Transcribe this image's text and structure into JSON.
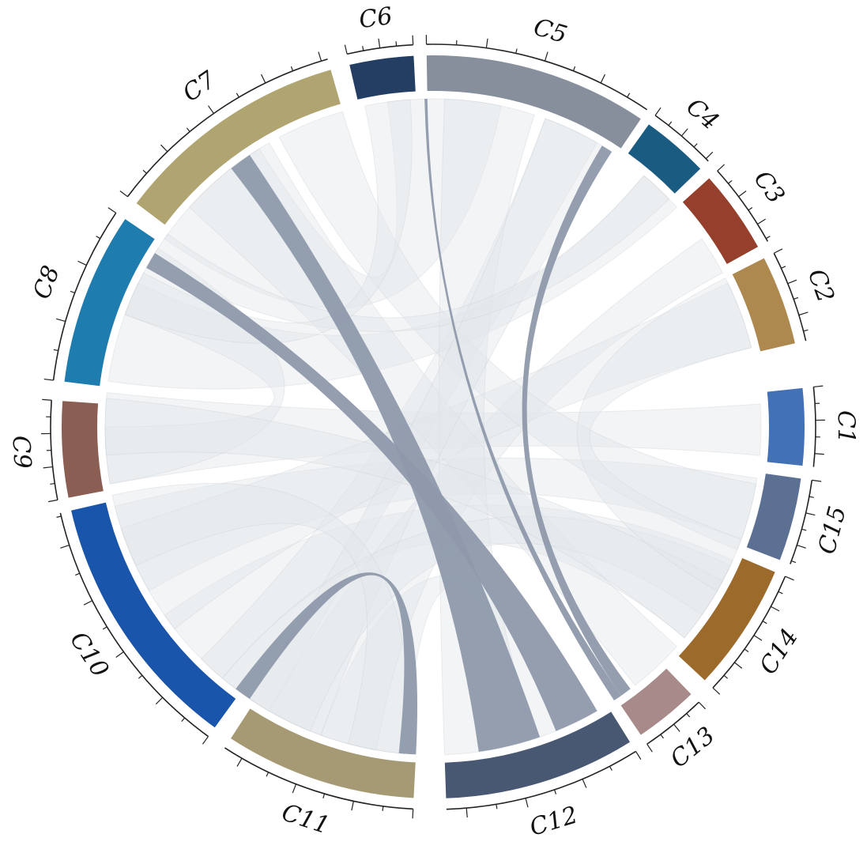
{
  "chart_data": {
    "type": "chord",
    "highlight_color": "#8e99ab",
    "background_link_color": "#e3e6ea",
    "sectors": [
      {
        "name": "C1",
        "start": 84,
        "end": 96,
        "color": "#4272b5"
      },
      {
        "name": "C2",
        "start": 63,
        "end": 77,
        "color": "#ad894f"
      },
      {
        "name": "C3",
        "start": 48,
        "end": 61,
        "color": "#973f2d"
      },
      {
        "name": "C4",
        "start": 35.5,
        "end": 46,
        "color": "#1a5b82"
      },
      {
        "name": "C5",
        "start": -1,
        "end": 34,
        "color": "#878f9c"
      },
      {
        "name": "C6",
        "start": -13,
        "end": -3,
        "color": "#243e63"
      },
      {
        "name": "C7",
        "start": -53,
        "end": -16,
        "color": "#b0a471"
      },
      {
        "name": "C8",
        "start": -83,
        "end": -56,
        "color": "#1f7caf"
      },
      {
        "name": "C9",
        "start": -101,
        "end": -86,
        "color": "#8b5e54"
      },
      {
        "name": "C10",
        "start": -144,
        "end": -103,
        "color": "#1855ab"
      },
      {
        "name": "C11",
        "start": -177,
        "end": -147,
        "color": "#a69a74"
      },
      {
        "name": "C12",
        "start": 148,
        "end": 178,
        "color": "#485872"
      },
      {
        "name": "C13",
        "start": 136,
        "end": 146,
        "color": "#a88a8a"
      },
      {
        "name": "C14",
        "start": 113,
        "end": 133,
        "color": "#9c6b2b"
      },
      {
        "name": "C15",
        "start": 98,
        "end": 111,
        "color": "#5c7093"
      }
    ],
    "highlighted_links": [
      {
        "a": [
          -38,
          -34
        ],
        "b": [
          161,
          172
        ]
      },
      {
        "a": [
          -61,
          -58
        ],
        "b": [
          150,
          158
        ]
      },
      {
        "a": [
          -177,
          -174
        ],
        "b": [
          -146,
          -143
        ]
      },
      {
        "a": [
          -1.5,
          -1
        ],
        "b": [
          145,
          146.5
        ]
      },
      {
        "a": [
          31,
          33
        ],
        "b": [
          143,
          145
        ]
      }
    ],
    "background_links": [
      {
        "a": [
          -55,
          -32
        ],
        "b": [
          -8,
          12
        ]
      },
      {
        "a": [
          -100,
          -84
        ],
        "b": [
          86,
          95
        ]
      },
      {
        "a": [
          -120,
          -104
        ],
        "b": [
          99,
          110
        ]
      },
      {
        "a": [
          -140,
          -125
        ],
        "b": [
          114,
          130
        ]
      },
      {
        "a": [
          -175,
          -160
        ],
        "b": [
          150,
          162
        ]
      },
      {
        "a": [
          -150,
          -135
        ],
        "b": [
          20,
          30
        ]
      },
      {
        "a": [
          -82,
          -64
        ],
        "b": [
          40,
          48
        ]
      },
      {
        "a": [
          -70,
          -57
        ],
        "b": [
          -100,
          -90
        ]
      },
      {
        "a": [
          -170,
          -150
        ],
        "b": [
          55,
          62
        ]
      },
      {
        "a": [
          -128,
          -108
        ],
        "b": [
          64,
          76
        ]
      },
      {
        "a": [
          -48,
          -30
        ],
        "b": [
          132,
          142
        ]
      },
      {
        "a": [
          -28,
          -16
        ],
        "b": [
          100,
          112
        ]
      },
      {
        "a": [
          2,
          18
        ],
        "b": [
          162,
          178
        ]
      },
      {
        "a": [
          20,
          33
        ],
        "b": [
          -160,
          -146
        ]
      },
      {
        "a": [
          -158,
          -140
        ],
        "b": [
          115,
          125
        ]
      },
      {
        "a": [
          -95,
          -85
        ],
        "b": [
          118,
          130
        ]
      },
      {
        "a": [
          -115,
          -102
        ],
        "b": [
          -175,
          -165
        ]
      },
      {
        "a": [
          40,
          46
        ],
        "b": [
          -60,
          -54
        ]
      },
      {
        "a": [
          -12,
          -4
        ],
        "b": [
          -70,
          -62
        ]
      },
      {
        "a": [
          63,
          76
        ],
        "b": [
          110,
          120
        ]
      }
    ]
  }
}
